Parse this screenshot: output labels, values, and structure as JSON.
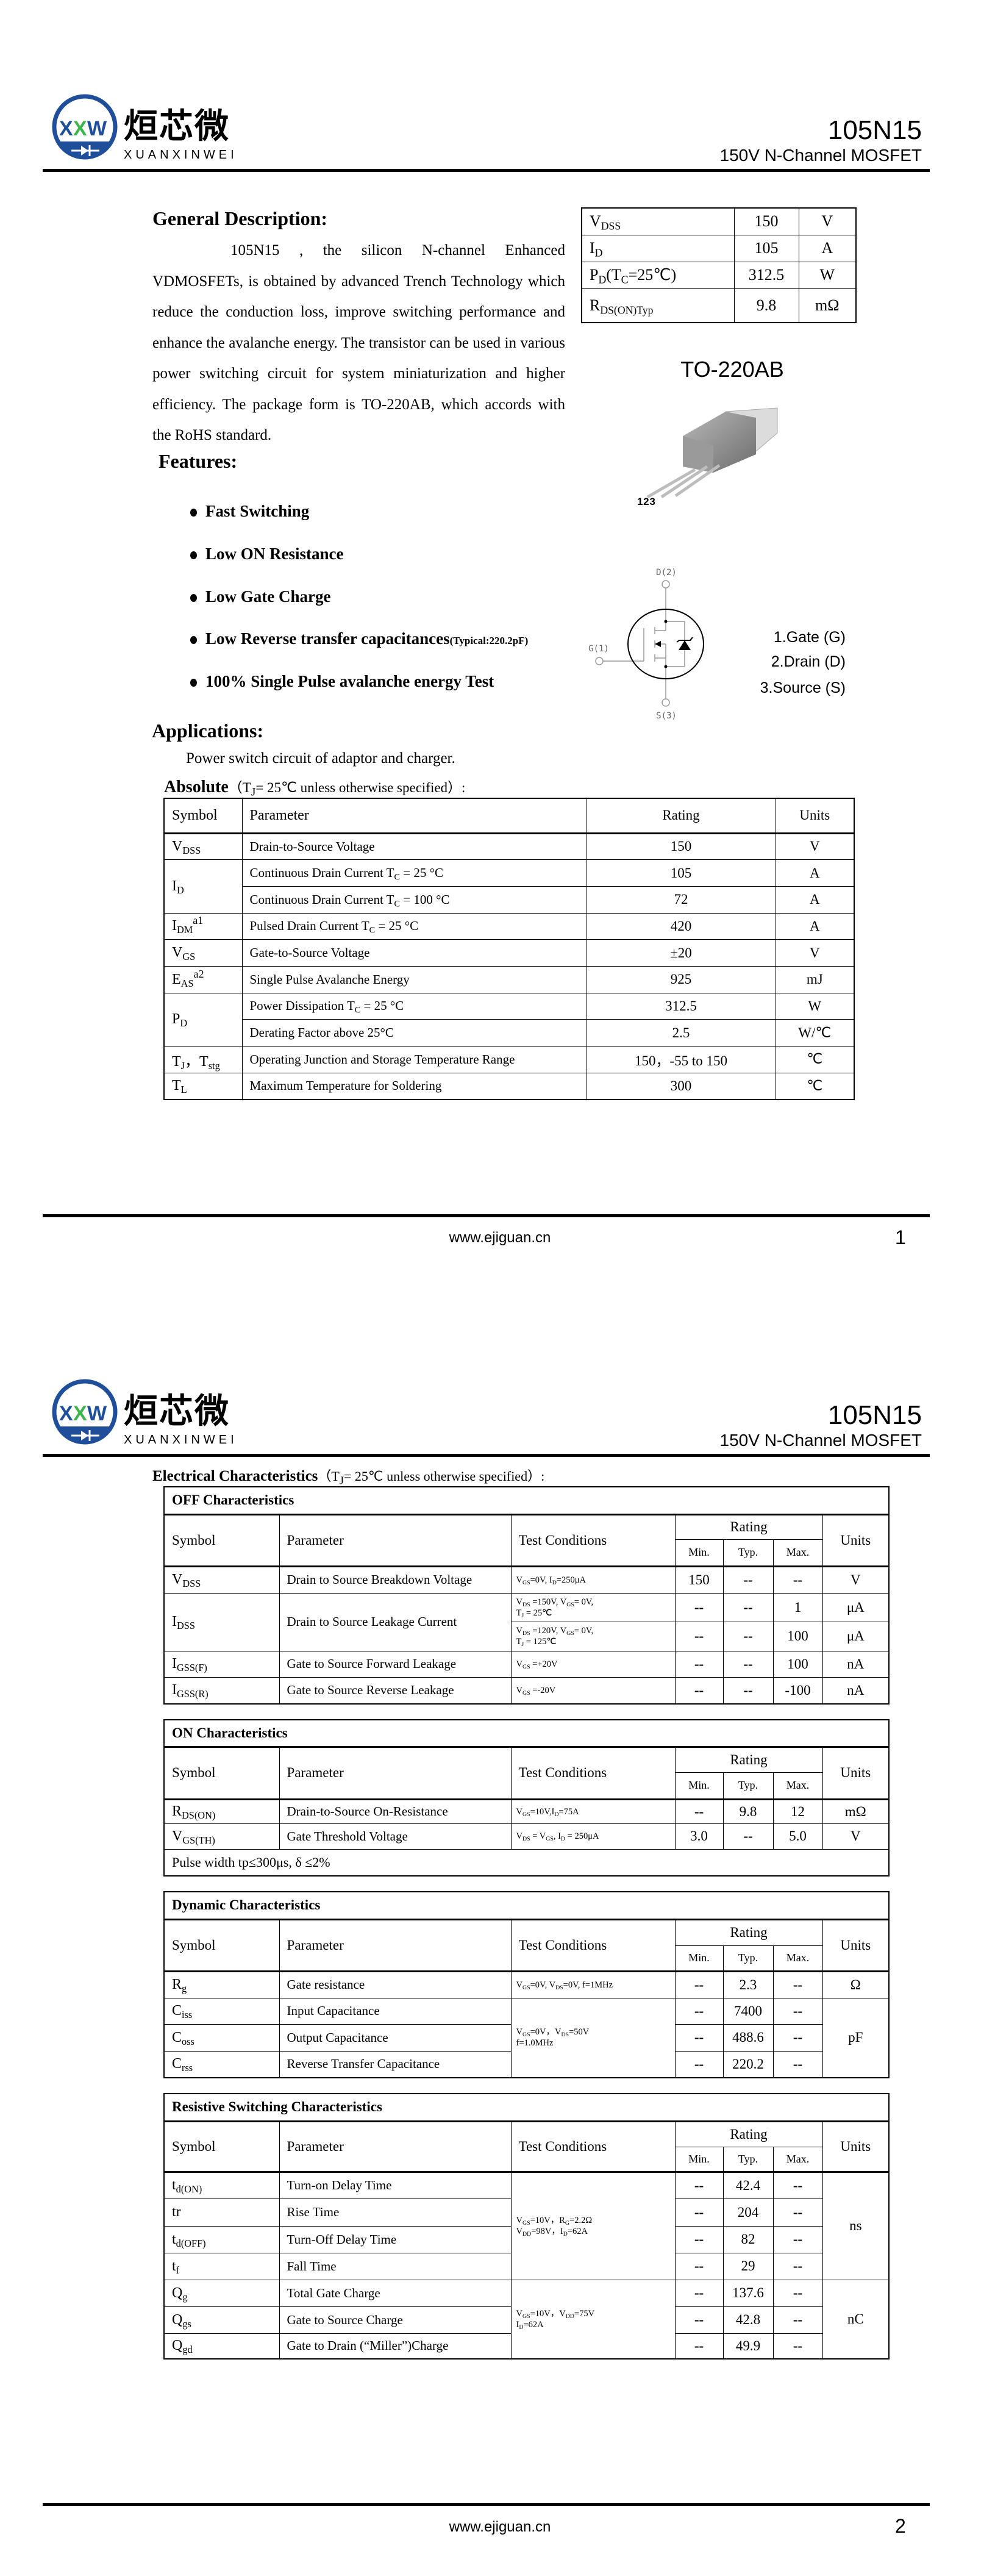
{
  "header": {
    "logo_letters": "XXW",
    "brand_cn": "烜芯微",
    "brand_en": "XUANXINWEI",
    "part": "105N15",
    "subtitle": "150V N-Channel MOSFET"
  },
  "footer": {
    "url": "www.ejiguan.cn",
    "page1": "1",
    "page2": "2"
  },
  "colors": {
    "logo_blue": "#1f4e9a",
    "logo_green": "#3cb54a"
  },
  "description": {
    "heading": "General Description:",
    "text": "105N15 , the silicon N-channel Enhanced VDMOSFETs, is obtained by advanced Trench Technology which reduce the conduction loss, improve switching performance and enhance the avalanche energy. The transistor can be used in various power switching circuit for system miniaturization and higher efficiency. The package form is TO-220AB, which accords with the RoHS standard."
  },
  "summary": [
    {
      "symbol": [
        "V",
        "DSS"
      ],
      "value": "150",
      "unit": "V"
    },
    {
      "symbol": [
        "I",
        "D"
      ],
      "value": "105",
      "unit": "A"
    },
    {
      "symbol": [
        "P",
        "D",
        "(T",
        "C",
        "=25℃)"
      ],
      "value": "312.5",
      "unit": "W"
    },
    {
      "symbol": [
        "R",
        "DS(ON)Typ"
      ],
      "value": "9.8",
      "unit": "mΩ"
    }
  ],
  "package": {
    "name": "TO-220AB",
    "pin_numbers": "1 2 3"
  },
  "schematic": {
    "drain": "D(2)",
    "gate": "G(1)",
    "source": "S(3)"
  },
  "pins": [
    "1.Gate (G)",
    "2.Drain (D)",
    "3.Source (S)"
  ],
  "features": {
    "heading": "Features:",
    "items": [
      {
        "label": "Fast Switching"
      },
      {
        "label": "Low ON Resistance"
      },
      {
        "label": "Low Gate Charge"
      },
      {
        "label": "Low Reverse transfer capacitances",
        "note": "(Typical:220.2pF)"
      },
      {
        "label": "100% Single Pulse avalanche energy Test"
      }
    ]
  },
  "applications": {
    "heading": "Applications:",
    "text": "Power switch circuit of adaptor and charger."
  },
  "absolute": {
    "label": "Absolute",
    "condition": [
      "（T",
      "J",
      "= 25℃  unless otherwise specified）:"
    ],
    "columns": {
      "symbol": "Symbol",
      "parameter": "Parameter",
      "rating": "Rating",
      "units": "Units"
    },
    "rows": [
      {
        "symbol": [
          "V",
          "DSS"
        ],
        "parameter": "Drain-to-Source Voltage",
        "rating": "150",
        "units": "V"
      },
      {
        "symbol": [
          "I",
          "D"
        ],
        "parameter": [
          "Continuous Drain Current T",
          "C",
          " = 25 °C"
        ],
        "rating": "105",
        "units": "A"
      },
      {
        "parameter": [
          "Continuous Drain Current T",
          "C",
          " = 100 °C"
        ],
        "rating": "72",
        "units": "A"
      },
      {
        "symbol": [
          "I",
          "DM"
        ],
        "note": "a1",
        "parameter": [
          "Pulsed Drain Current T",
          "C",
          " = 25 °C"
        ],
        "rating": "420",
        "units": "A"
      },
      {
        "symbol": [
          "V",
          "GS"
        ],
        "parameter": "Gate-to-Source Voltage",
        "rating": "±20",
        "units": "V"
      },
      {
        "symbol": [
          "E",
          "AS"
        ],
        "note": "a2",
        "parameter": "Single Pulse Avalanche Energy",
        "rating": "925",
        "units": "mJ"
      },
      {
        "symbol": [
          "P",
          "D"
        ],
        "parameter": [
          "Power Dissipation T",
          "C",
          " = 25 °C"
        ],
        "rating": "312.5",
        "units": "W"
      },
      {
        "parameter": "Derating Factor above 25°C",
        "rating": "2.5",
        "units": "W/℃"
      },
      {
        "symbol": [
          "T",
          "J",
          "，T",
          "stg"
        ],
        "parameter": "Operating Junction and Storage Temperature Range",
        "rating": "150，-55 to 150",
        "units": "℃"
      },
      {
        "symbol": [
          "T",
          "L"
        ],
        "parameter": "Maximum Temperature for Soldering",
        "rating": "300",
        "units": "℃"
      }
    ]
  },
  "electrical": {
    "label": "Electrical Characteristics",
    "condition": [
      "（T",
      "J",
      "= 25℃  unless otherwise specified）:"
    ],
    "columns": {
      "symbol": "Symbol",
      "parameter": "Parameter",
      "conditions": "Test Conditions",
      "rating": "Rating",
      "min": "Min.",
      "typ": "Typ.",
      "max": "Max.",
      "units": "Units"
    },
    "off": {
      "title": "OFF Characteristics",
      "rows": [
        {
          "symbol": [
            "V",
            "DSS"
          ],
          "parameter": "Drain to Source Breakdown Voltage",
          "conditions": [
            "V",
            "GS",
            "=0V, I",
            "D",
            "=250μA"
          ],
          "min": "150",
          "typ": "--",
          "max": "--",
          "units": "V"
        },
        {
          "symbol": [
            "I",
            "DSS"
          ],
          "parameter": "Drain to Source Leakage Current",
          "conditions": [
            "V",
            "DS",
            " =150V, V",
            "GS",
            "= 0V,\nT",
            "J",
            " = 25℃"
          ],
          "min": "--",
          "typ": "--",
          "max": "1",
          "units": "μA"
        },
        {
          "conditions": [
            "V",
            "DS",
            " =120V, V",
            "GS",
            "= 0V,\nT",
            "J",
            " = 125℃"
          ],
          "min": "--",
          "typ": "--",
          "max": "100",
          "units": "μA"
        },
        {
          "symbol": [
            "I",
            "GSS(F)"
          ],
          "parameter": "Gate to Source Forward Leakage",
          "conditions": [
            "V",
            "GS",
            " =+20V"
          ],
          "min": "--",
          "typ": "--",
          "max": "100",
          "units": "nA"
        },
        {
          "symbol": [
            "I",
            "GSS(R)"
          ],
          "parameter": "Gate to Source Reverse Leakage",
          "conditions": [
            "V",
            "GS",
            " =-20V"
          ],
          "min": "--",
          "typ": "--",
          "max": "-100",
          "units": "nA"
        }
      ]
    },
    "on": {
      "title": "ON Characteristics",
      "rows": [
        {
          "symbol": [
            "R",
            "DS(ON)"
          ],
          "parameter": "Drain-to-Source On-Resistance",
          "conditions": [
            "V",
            "GS",
            "=10V,I",
            "D",
            "=75A"
          ],
          "min": "--",
          "typ": "9.8",
          "max": "12",
          "units": "mΩ"
        },
        {
          "symbol": [
            "V",
            "GS(TH)"
          ],
          "parameter": "Gate Threshold Voltage",
          "conditions": [
            "V",
            "DS",
            " = V",
            "GS",
            ", I",
            "D",
            " = 250μA"
          ],
          "min": "3.0",
          "typ": "--",
          "max": "5.0",
          "units": "V"
        }
      ],
      "note": "Pulse width tp≤300μs, δ ≤2%"
    },
    "dynamic": {
      "title": "Dynamic Characteristics",
      "rows": [
        {
          "symbol": [
            "R",
            "g"
          ],
          "parameter": "Gate resistance",
          "conditions": [
            "V",
            "GS",
            "=0V, V",
            "DS",
            "=0V, f=1MHz"
          ],
          "min": "--",
          "typ": "2.3",
          "max": "--",
          "units": "Ω"
        },
        {
          "symbol": [
            "C",
            "iss"
          ],
          "parameter": "Input Capacitance",
          "conditions": [
            "V",
            "GS",
            "=0V，V",
            "DS",
            "=50V\nf=1.0MHz"
          ],
          "min": "--",
          "typ": "7400",
          "max": "--",
          "units": "pF"
        },
        {
          "symbol": [
            "C",
            "oss"
          ],
          "parameter": "Output Capacitance",
          "min": "--",
          "typ": "488.6",
          "max": "--"
        },
        {
          "symbol": [
            "C",
            "rss"
          ],
          "parameter": "Reverse Transfer Capacitance",
          "min": "--",
          "typ": "220.2",
          "max": "--"
        }
      ]
    },
    "switching": {
      "title": "Resistive Switching Characteristics",
      "rows": [
        {
          "symbol": [
            "t",
            "d(ON)"
          ],
          "parameter": "Turn-on Delay Time",
          "conditions": [
            "V",
            "GS",
            "=10V，R",
            "G",
            "=2.2Ω\nV",
            "DD",
            "=98V，I",
            "D",
            "=62A"
          ],
          "min": "--",
          "typ": "42.4",
          "max": "--",
          "units": "ns"
        },
        {
          "symbol": [
            "tr"
          ],
          "parameter": "Rise Time",
          "min": "--",
          "typ": "204",
          "max": "--"
        },
        {
          "symbol": [
            "t",
            "d(OFF)"
          ],
          "parameter": "Turn-Off Delay Time",
          "min": "--",
          "typ": "82",
          "max": "--"
        },
        {
          "symbol": [
            "t",
            "f"
          ],
          "parameter": "Fall Time",
          "min": "--",
          "typ": "29",
          "max": "--"
        },
        {
          "symbol": [
            "Q",
            "g"
          ],
          "parameter": "Total Gate Charge",
          "conditions": [
            "V",
            "GS",
            "=10V，V",
            "DD",
            "=75V\nI",
            "D",
            "=62A"
          ],
          "min": "--",
          "typ": "137.6",
          "max": "--",
          "units": "nC"
        },
        {
          "symbol": [
            "Q",
            "gs"
          ],
          "parameter": "Gate to Source Charge",
          "min": "--",
          "typ": "42.8",
          "max": "--"
        },
        {
          "symbol": [
            "Q",
            "gd"
          ],
          "parameter": "Gate to Drain (“Miller”)Charge",
          "min": "--",
          "typ": "49.9",
          "max": "--"
        }
      ]
    }
  }
}
